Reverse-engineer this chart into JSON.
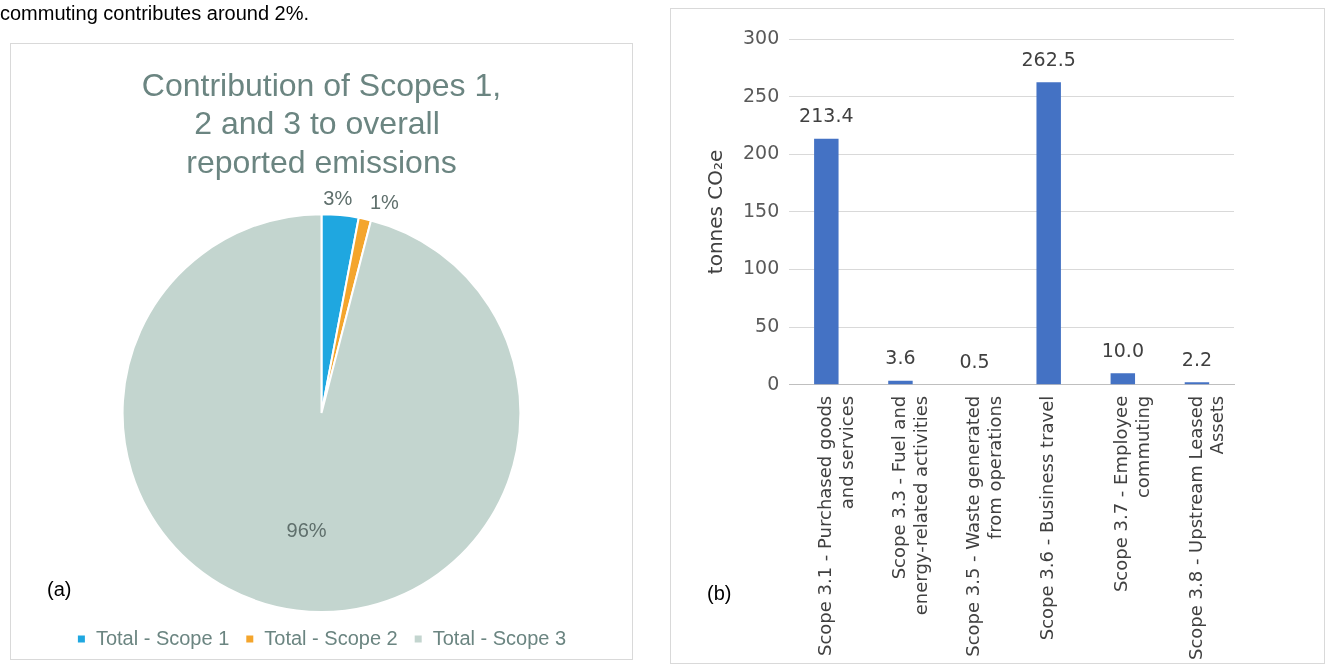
{
  "chart_data": [
    {
      "type": "pie",
      "title": "Contribution of Scopes 1, 2 and 3 to overall  reported emissions",
      "categories": [
        "Total - Scope 1",
        "Total - Scope 2",
        "Total - Scope 3"
      ],
      "values": [
        3,
        1,
        96
      ],
      "colors": [
        "#1fa7e0",
        "#f4a52c",
        "#c3d5cf"
      ],
      "value_labels": [
        "3%",
        "1%",
        "96%"
      ],
      "legend": "bottom",
      "annotations": [
        "commuting contributes around 2%.",
        "(a)"
      ]
    },
    {
      "type": "bar",
      "categories": [
        "Scope 3.1 - Purchased goods and services",
        "Scope 3.3 - Fuel and energy-related activities",
        "Scope 3.5 - Waste generated from operations",
        "Scope 3.6 - Business travel",
        "Scope 3.7 - Employee commuting",
        "Scope 3.8 - Upstream Leased Assets"
      ],
      "values": [
        213.4,
        3.6,
        0.5,
        262.5,
        10.0,
        2.2
      ],
      "color": "#4472c4",
      "value_labels": [
        "213.4",
        "3.6",
        "0.5",
        "262.5",
        "10.0",
        "2.2"
      ],
      "ylabel": "tonnes CO₂e",
      "ylim": [
        0,
        300
      ],
      "yticks": [
        0,
        50,
        100,
        150,
        200,
        250,
        300
      ],
      "grid": "y",
      "annotations": [
        "(b)"
      ]
    }
  ]
}
